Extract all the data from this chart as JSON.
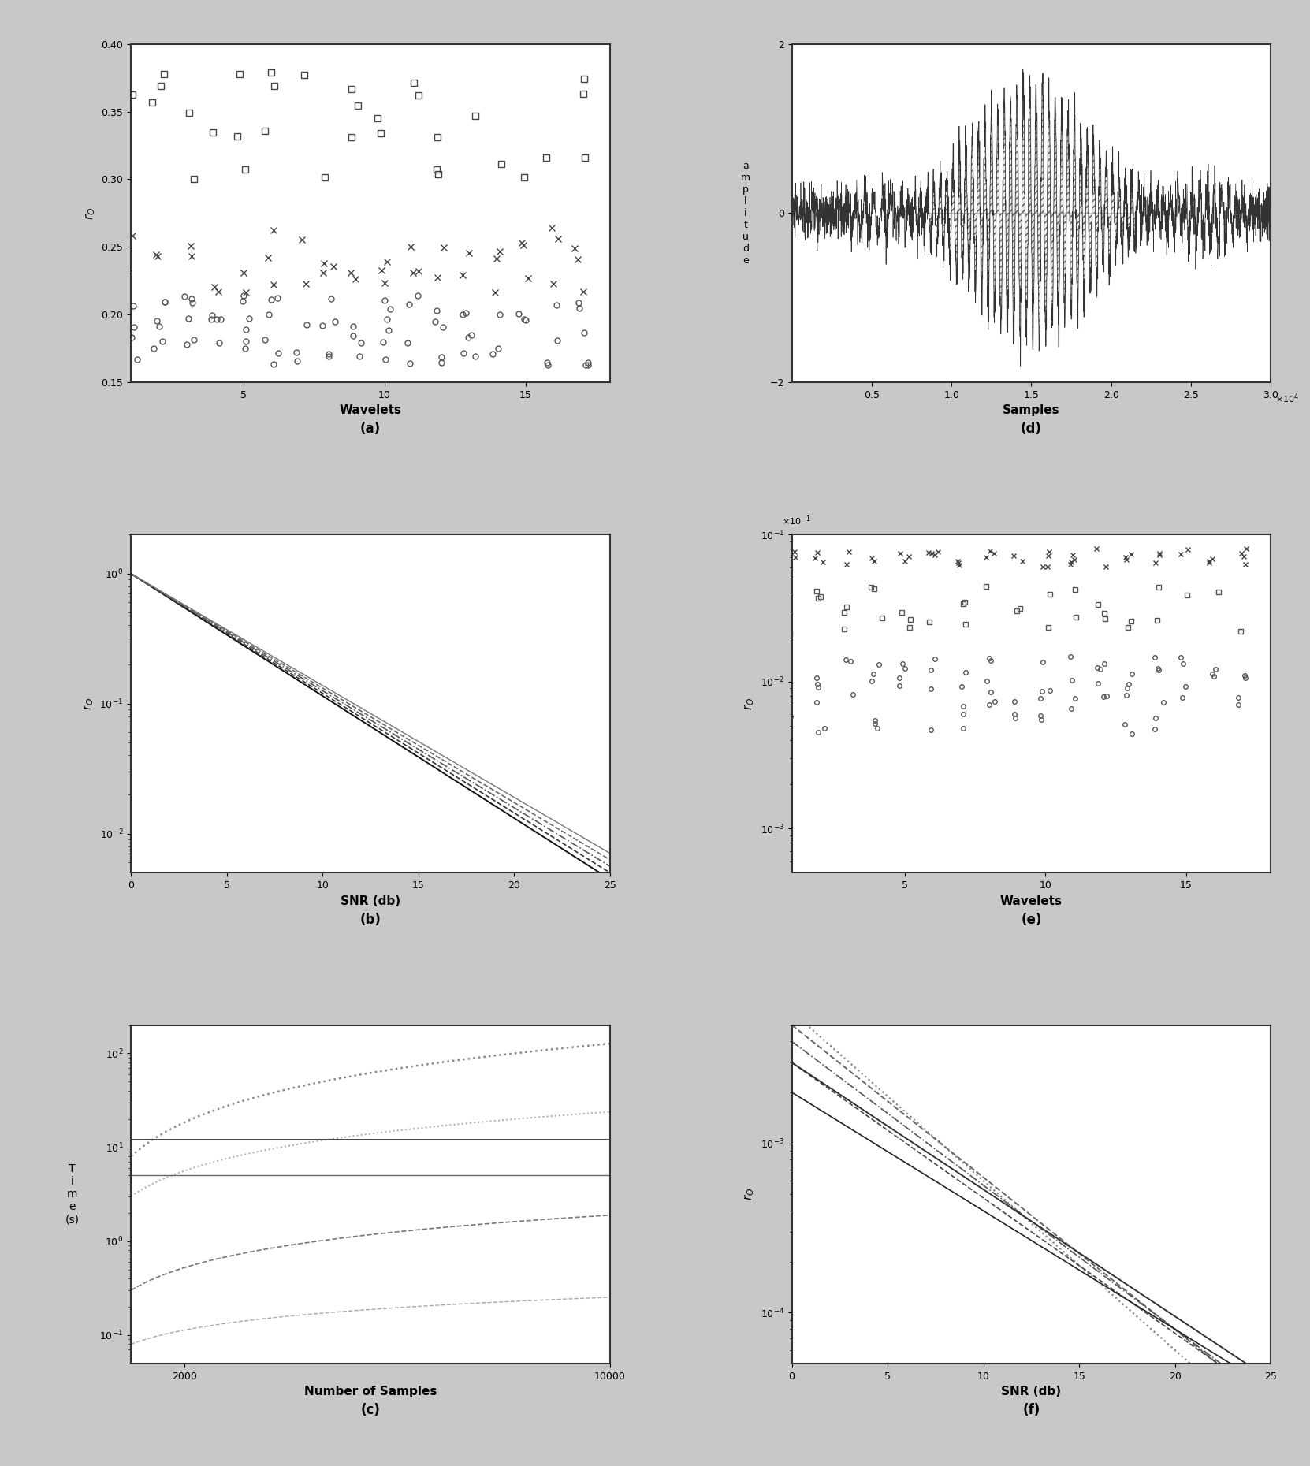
{
  "fig_width": 16.62,
  "fig_height": 18.6,
  "background_color": "#c8c8c8",
  "subplot_bg": "#ffffff",
  "panel_a": {
    "xlabel": "Wavelets",
    "ylabel": "r_O",
    "label": "(a)",
    "xlim": [
      1,
      18
    ],
    "ylim": [
      0.15,
      0.4
    ],
    "yticks": [
      0.15,
      0.2,
      0.25,
      0.3,
      0.35,
      0.4
    ],
    "xticks": [
      5,
      10,
      15
    ]
  },
  "panel_b": {
    "xlabel": "SNR (db)",
    "ylabel": "r_O",
    "label": "(b)",
    "xlim": [
      0,
      25
    ],
    "ylim": [
      0.005,
      2.0
    ],
    "xticks": [
      0,
      5,
      10,
      15,
      20,
      25
    ]
  },
  "panel_c": {
    "xlabel": "Number of Samples",
    "ylabel": "T\ni\nm\ne\n(s)",
    "label": "(c)",
    "xlim": [
      1000,
      10000
    ],
    "ylim": [
      0.05,
      200
    ],
    "xticks": [
      2000,
      10000
    ]
  },
  "panel_d": {
    "xlabel": "Samples",
    "ylabel": "a\nm\np\nl\ni\nt\nu\nd\ne",
    "label": "(d)",
    "xlim": [
      0,
      3.0
    ],
    "ylim": [
      -2,
      2
    ],
    "yticks": [
      -2,
      0,
      2
    ],
    "xticks": [
      0.5,
      1.0,
      1.5,
      2.0,
      2.5,
      3.0
    ]
  },
  "panel_e": {
    "xlabel": "Wavelets",
    "ylabel": "r_O",
    "label": "(e)",
    "xlim": [
      1,
      18
    ],
    "ylim": [
      0.0005,
      0.1
    ],
    "xticks": [
      5,
      10,
      15
    ]
  },
  "panel_f": {
    "xlabel": "SNR (db)",
    "ylabel": "r_O",
    "label": "(f)",
    "xlim": [
      0,
      25
    ],
    "ylim": [
      5e-05,
      0.005
    ],
    "xticks": [
      0,
      5,
      10,
      15,
      20,
      25
    ]
  }
}
